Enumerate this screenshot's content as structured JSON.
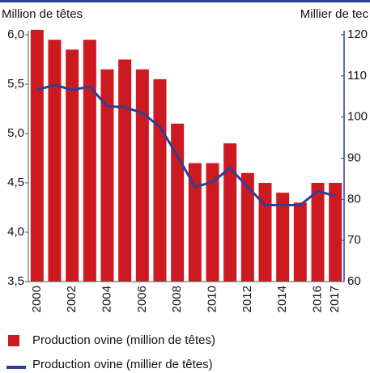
{
  "chart_data": {
    "type": "bar",
    "y_label": "Million de têtes",
    "y2_label": "Millier de tec",
    "categories": [
      "2000",
      "2001",
      "2002",
      "2003",
      "2004",
      "2005",
      "2006",
      "2007",
      "2008",
      "2009",
      "2010",
      "2011",
      "2012",
      "2013",
      "2014",
      "2015",
      "2016",
      "2017"
    ],
    "x_labels": [
      "2000",
      null,
      "2002",
      null,
      "2004",
      null,
      "2006",
      null,
      "2008",
      null,
      "2010",
      null,
      "2012",
      null,
      "2014",
      null,
      "2016",
      "2017"
    ],
    "series": [
      {
        "name": "Production ovine (million de têtes)",
        "type": "bar",
        "axis": "y",
        "color": "#cc1a20",
        "values": [
          6.05,
          5.95,
          5.85,
          5.95,
          5.65,
          5.75,
          5.65,
          5.55,
          5.1,
          4.7,
          4.7,
          4.9,
          4.6,
          4.5,
          4.4,
          4.3,
          4.5,
          4.5
        ]
      },
      {
        "name": "Production ovine (millier de têtes)",
        "type": "line",
        "axis": "y2",
        "color": "#2e3f96",
        "values": [
          106.6,
          107.8,
          106.6,
          107.4,
          102.6,
          102.4,
          101,
          97.6,
          90.6,
          83,
          84.2,
          87.6,
          83,
          78.6,
          78.6,
          78.6,
          82,
          80.8
        ]
      }
    ],
    "ylim": [
      3.5,
      6.0
    ],
    "yticks": [
      {
        "value": 3.5,
        "label": "3,5"
      },
      {
        "value": 4.0,
        "label": "4,0"
      },
      {
        "value": 4.5,
        "label": "4,5"
      },
      {
        "value": 5.0,
        "label": "5,0"
      },
      {
        "value": 5.5,
        "label": "5,5"
      },
      {
        "value": 6.0,
        "label": "6,0"
      }
    ],
    "y2lim": [
      60,
      120
    ],
    "y2ticks": [
      60,
      70,
      80,
      90,
      100,
      110,
      120
    ],
    "grid": false
  }
}
